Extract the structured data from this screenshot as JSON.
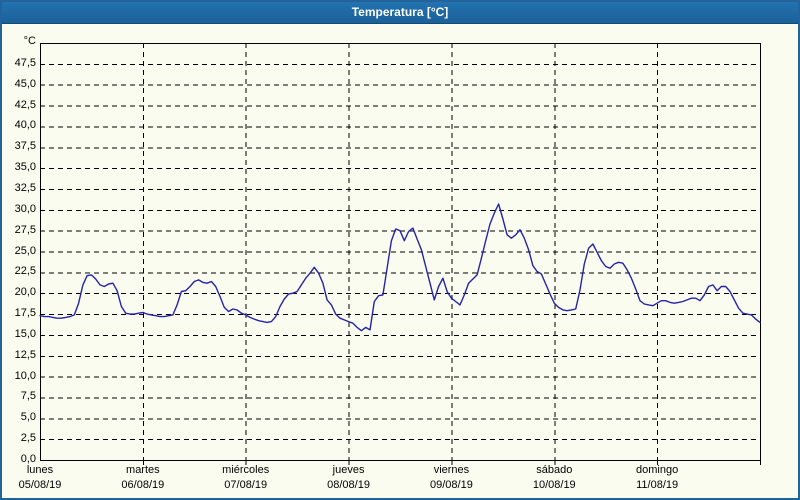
{
  "window": {
    "title": "Temperatura [°C]"
  },
  "colors": {
    "titlebar": "#1e6ba5",
    "frame": "#24629c",
    "background": "#fbfcf0",
    "line": "#2424a8",
    "grid": "#000000",
    "text": "#000000"
  },
  "chart_data": {
    "type": "line",
    "title": "Temperatura [°C]",
    "ylabel": "°C",
    "ylim": [
      0,
      50
    ],
    "y_tick_step": 2.5,
    "y_tick_labels": [
      "47,5",
      "45,0",
      "42,5",
      "40,0",
      "37,5",
      "35,0",
      "32,5",
      "30,0",
      "27,5",
      "25,0",
      "22,5",
      "20,0",
      "17,5",
      "15,0",
      "12,5",
      "10,0",
      "7,5",
      "5,0",
      "2,5",
      "0,0"
    ],
    "grid": true,
    "legend": "none",
    "sampling": "hourly",
    "points_per_day": 24,
    "x_axis": {
      "days": [
        {
          "name": "lunes",
          "date": "05/08/19"
        },
        {
          "name": "martes",
          "date": "06/08/19"
        },
        {
          "name": "miércoles",
          "date": "07/08/19"
        },
        {
          "name": "jueves",
          "date": "08/08/19"
        },
        {
          "name": "viernes",
          "date": "09/08/19"
        },
        {
          "name": "sábado",
          "date": "10/08/19"
        },
        {
          "name": "domingo",
          "date": "11/08/19"
        }
      ]
    },
    "series": [
      {
        "name": "Temperatura",
        "unit": "°C",
        "color": "#2424a8",
        "values": [
          17.3,
          17.2,
          17.2,
          17.1,
          17.0,
          17.0,
          17.1,
          17.2,
          17.4,
          18.8,
          21.0,
          22.1,
          22.2,
          21.7,
          21.0,
          20.8,
          21.1,
          21.2,
          20.3,
          18.4,
          17.6,
          17.5,
          17.5,
          17.6,
          17.7,
          17.5,
          17.4,
          17.3,
          17.2,
          17.2,
          17.3,
          17.4,
          18.6,
          20.2,
          20.3,
          20.8,
          21.4,
          21.6,
          21.3,
          21.2,
          21.4,
          20.8,
          19.6,
          18.3,
          17.8,
          18.1,
          18.0,
          17.6,
          17.4,
          17.1,
          16.9,
          16.7,
          16.6,
          16.5,
          16.6,
          17.2,
          18.4,
          19.3,
          19.9,
          20.0,
          20.2,
          21.0,
          21.8,
          22.4,
          23.1,
          22.4,
          21.2,
          19.2,
          18.6,
          17.5,
          17.0,
          16.8,
          16.6,
          16.4,
          15.9,
          15.5,
          15.9,
          15.6,
          19.0,
          19.7,
          19.8,
          23.0,
          26.3,
          27.7,
          27.5,
          26.3,
          27.4,
          27.8,
          26.5,
          25.2,
          23.2,
          21.2,
          19.2,
          20.8,
          21.8,
          20.2,
          19.4,
          19.0,
          18.6,
          19.8,
          21.2,
          21.7,
          22.2,
          24.2,
          26.3,
          28.3,
          29.6,
          30.7,
          28.9,
          27.0,
          26.6,
          27.0,
          27.6,
          26.6,
          25.2,
          23.3,
          22.6,
          22.3,
          21.1,
          19.9,
          18.8,
          18.3,
          18.0,
          17.9,
          18.0,
          18.1,
          20.4,
          23.5,
          25.4,
          25.9,
          24.9,
          23.9,
          23.2,
          23.0,
          23.5,
          23.7,
          23.6,
          22.8,
          21.8,
          20.5,
          19.1,
          18.7,
          18.6,
          18.5,
          18.8,
          19.1,
          19.1,
          18.9,
          18.8,
          18.9,
          19.0,
          19.2,
          19.4,
          19.4,
          19.1,
          19.8,
          20.8,
          21.0,
          20.3,
          20.8,
          20.8,
          20.2,
          19.2,
          18.2,
          17.6,
          17.5,
          17.4,
          16.9,
          16.5
        ]
      }
    ]
  }
}
